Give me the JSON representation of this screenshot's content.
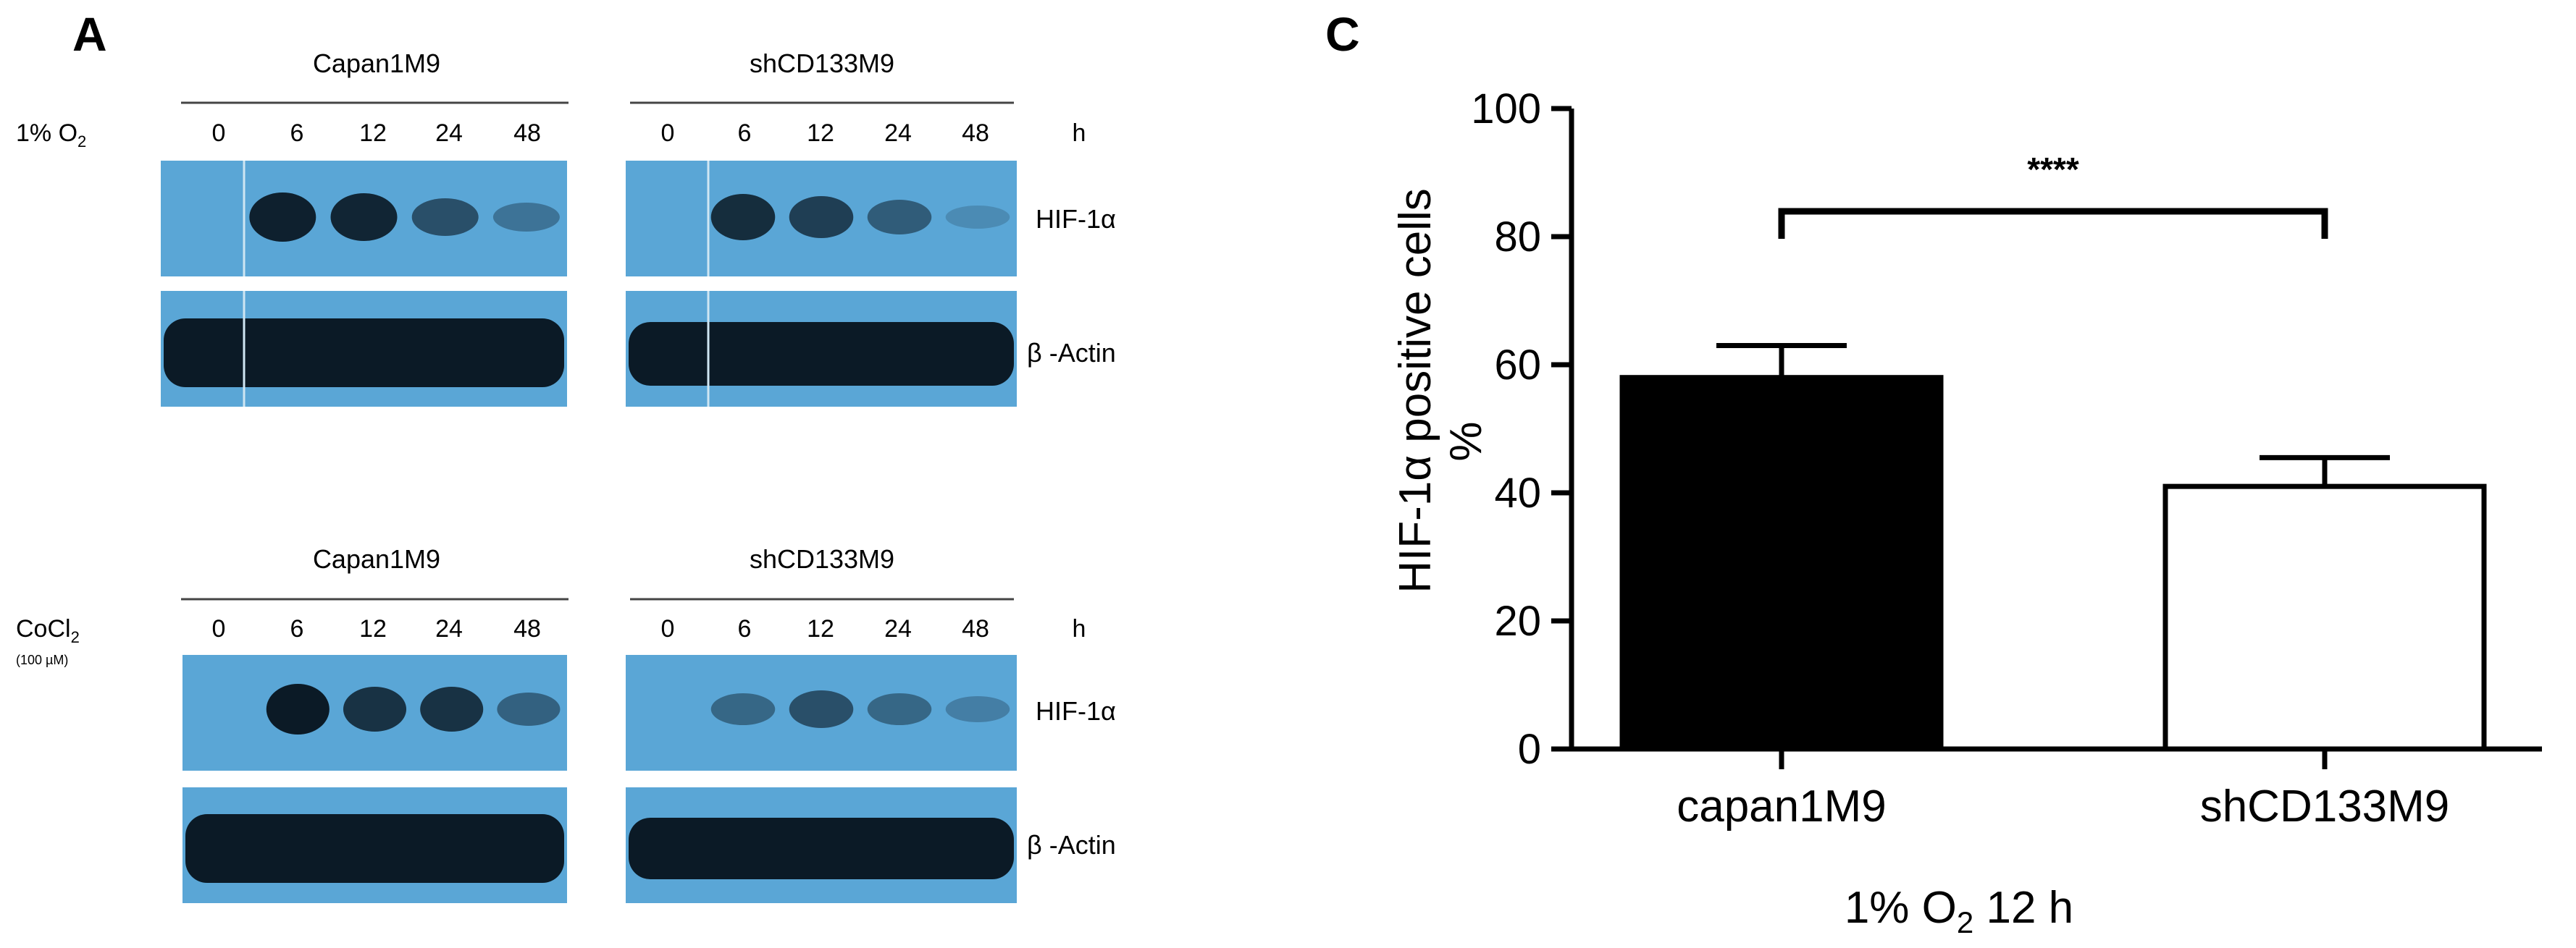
{
  "panel_a": {
    "letter": "A",
    "blocks": [
      {
        "condition_main": "1% O",
        "condition_sub": "2",
        "condition_note": "",
        "groups": [
          {
            "name": "Capan1M9",
            "lanes": [
              "0",
              "6",
              "12",
              "24",
              "48"
            ],
            "hif_intensity": [
              0.0,
              0.95,
              0.9,
              0.55,
              0.25
            ]
          },
          {
            "name": "shCD133M9",
            "lanes": [
              "0",
              "6",
              "12",
              "24",
              "48"
            ],
            "hif_intensity": [
              0.0,
              0.85,
              0.7,
              0.45,
              0.05
            ]
          }
        ],
        "unit": "h",
        "band_labels": [
          "HIF-1α",
          "β -Actin"
        ]
      },
      {
        "condition_main": "CoCl",
        "condition_sub": "2",
        "condition_note": "(100 µM)",
        "groups": [
          {
            "name": "Capan1M9",
            "lanes": [
              "0",
              "6",
              "12",
              "24",
              "48"
            ],
            "hif_intensity": [
              0.0,
              1.0,
              0.8,
              0.8,
              0.4
            ]
          },
          {
            "name": "shCD133M9",
            "lanes": [
              "0",
              "6",
              "12",
              "24",
              "48"
            ],
            "hif_intensity": [
              0.0,
              0.35,
              0.55,
              0.35,
              0.15
            ]
          }
        ],
        "unit": "h",
        "band_labels": [
          "HIF-1α",
          "β -Actin"
        ]
      }
    ],
    "colors": {
      "blot_bg": "#5aa6d6",
      "blot_band": "#0b1a26"
    }
  },
  "chart_data": {
    "letter": "C",
    "type": "bar",
    "categories": [
      "capan1M9",
      "shCD133M9"
    ],
    "values": [
      58,
      41
    ],
    "errors": [
      5,
      4.5
    ],
    "bar_fills": [
      "#000000",
      "#ffffff"
    ],
    "ylabel_main": "HIF-1α positive cells",
    "ylabel_unit": "%",
    "xlabel_pre": "1% O",
    "xlabel_sub": "2",
    "xlabel_post": " 12 h",
    "ylim": [
      0,
      100
    ],
    "yticks": [
      0,
      20,
      40,
      60,
      80,
      100
    ],
    "significance": "****",
    "grid": false,
    "legend": "none"
  }
}
